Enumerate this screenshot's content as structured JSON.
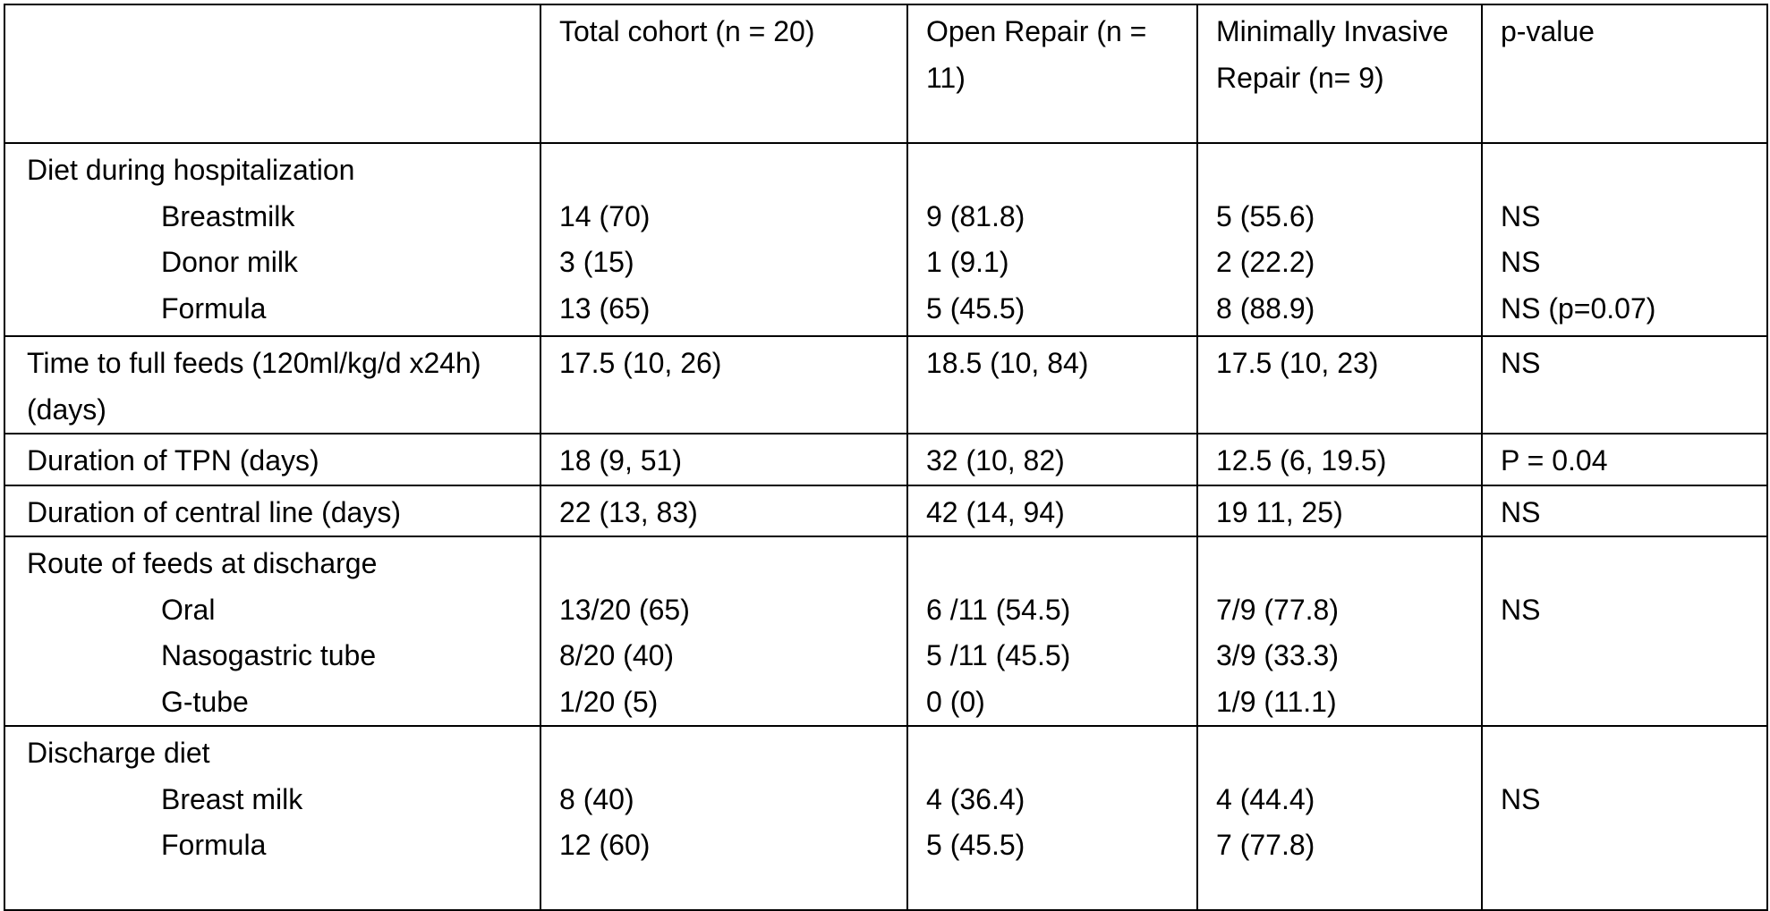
{
  "table": {
    "columns": [
      "Total cohort (n = 20)",
      "Open Repair (n = 11)",
      "Minimally Invasive Repair (n= 9)",
      "p-value"
    ],
    "groups": [
      {
        "label": "Diet during hospitalization",
        "items": [
          {
            "label": "Breastmilk",
            "values": [
              "14 (70)",
              "9 (81.8)",
              "5 (55.6)",
              "NS"
            ]
          },
          {
            "label": "Donor milk",
            "values": [
              "3 (15)",
              "1 (9.1)",
              "2 (22.2)",
              "NS"
            ]
          },
          {
            "label": "Formula",
            "values": [
              "13 (65)",
              "5 (45.5)",
              "8 (88.9)",
              "NS (p=0.07)"
            ]
          }
        ]
      },
      {
        "label": "Time to full feeds (120ml/kg/d x24h) (days)",
        "values": [
          "17.5 (10, 26)",
          "18.5 (10, 84)",
          "17.5 (10, 23)",
          "NS"
        ]
      },
      {
        "label": "Duration of TPN (days)",
        "values": [
          "18 (9, 51)",
          "32 (10, 82)",
          "12.5 (6, 19.5)",
          "P = 0.04"
        ]
      },
      {
        "label": "Duration of central line (days)",
        "values": [
          "22 (13, 83)",
          "42 (14, 94)",
          "19 11, 25)",
          "NS"
        ]
      },
      {
        "label": "Route of feeds at discharge",
        "items": [
          {
            "label": "Oral",
            "values": [
              "13/20 (65)",
              "6 /11 (54.5)",
              "7/9 (77.8)",
              "NS"
            ]
          },
          {
            "label": "Nasogastric tube",
            "values": [
              "8/20 (40)",
              "5 /11 (45.5)",
              "3/9 (33.3)",
              null
            ]
          },
          {
            "label": "G-tube",
            "values": [
              "1/20 (5)",
              "0 (0)",
              "1/9 (11.1)",
              null
            ]
          }
        ]
      },
      {
        "label": "Discharge diet",
        "items": [
          {
            "label": "Breast milk",
            "values": [
              "8 (40)",
              "4 (36.4)",
              "4 (44.4)",
              "NS"
            ]
          },
          {
            "label": "Formula",
            "values": [
              "12 (60)",
              "5 (45.5)",
              "7 (77.8)",
              null
            ]
          }
        ]
      }
    ]
  }
}
